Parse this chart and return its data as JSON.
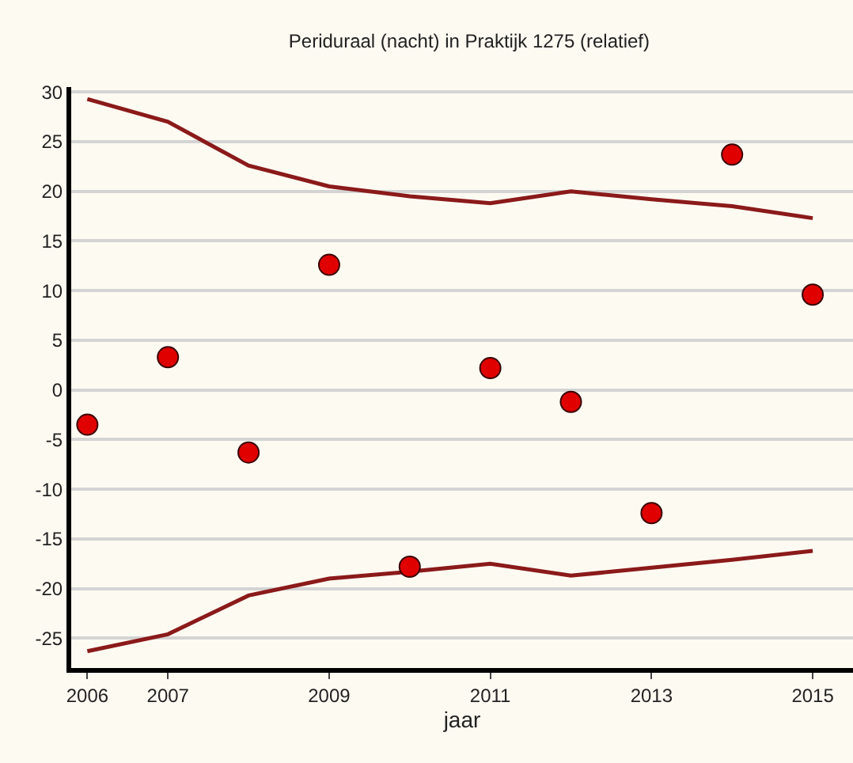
{
  "chart_data": {
    "type": "scatter",
    "title": "Periduraal (nacht) in Praktijk 1275 (relatief)",
    "xlabel": "jaar",
    "x": [
      2006,
      2007,
      2008,
      2009,
      2010,
      2011,
      2012,
      2013,
      2014,
      2015
    ],
    "series": [
      {
        "type": "line",
        "marker": "none",
        "color": "#8b1a1a",
        "values": [
          29.3,
          27,
          22.6,
          20.5,
          19.5,
          18.8,
          20.0,
          19.2,
          18.5,
          17.3
        ]
      },
      {
        "type": "line",
        "marker": "none",
        "color": "#8b1a1a",
        "values": [
          -26.3,
          -24.6,
          -20.7,
          -19,
          -18.3,
          -17.5,
          -18.7,
          -17.9,
          -17.1,
          -16.2
        ]
      },
      {
        "color": "#e00000",
        "values": [
          -3.5,
          3.3,
          -6.3,
          12.6,
          -17.8,
          2.2,
          -1.2,
          -12.4,
          23.7,
          9.6
        ]
      }
    ],
    "marker": "circle",
    "line_style": "solid",
    "xlim": [
      2005.8,
      2015.5
    ],
    "xticks": [
      2006,
      2007,
      2009,
      2011,
      2013,
      2015
    ],
    "ylim": [
      -28,
      30.5
    ],
    "yticks": [
      -25,
      -20,
      -15,
      -10,
      -5,
      0,
      5,
      10,
      15,
      20,
      25,
      30
    ],
    "grid": "y"
  }
}
